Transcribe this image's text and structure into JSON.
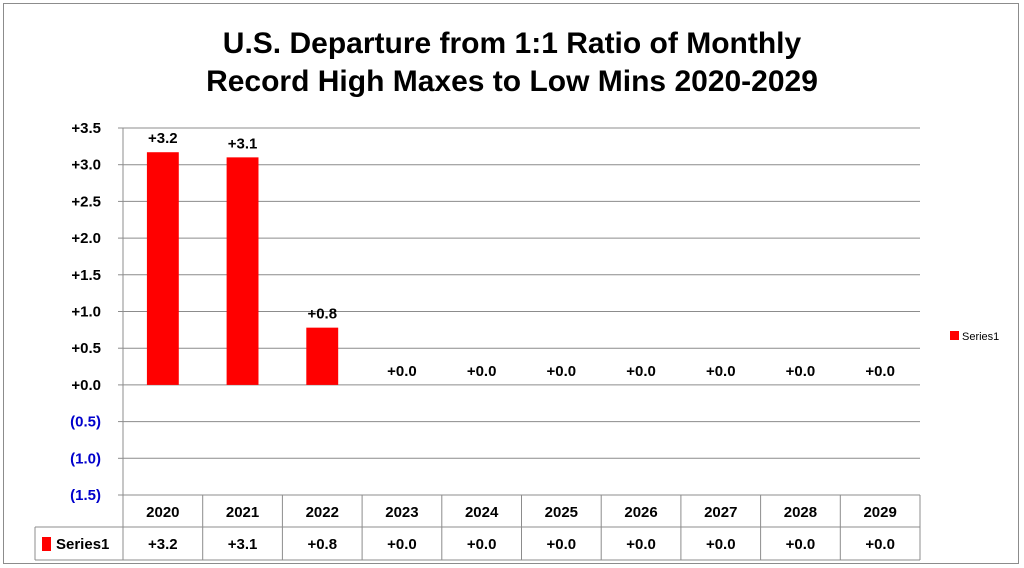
{
  "chart_data": {
    "type": "bar",
    "title_lines": [
      "U.S. Departure from 1:1 Ratio of Monthly",
      "Record High Maxes to Low Mins 2020-2029"
    ],
    "categories": [
      "2020",
      "2021",
      "2022",
      "2023",
      "2024",
      "2025",
      "2026",
      "2027",
      "2028",
      "2029"
    ],
    "series": [
      {
        "name": "Series1",
        "color": "#ff0000",
        "values": [
          3.17,
          3.1,
          0.78,
          0,
          0,
          0,
          0,
          0,
          0,
          0
        ],
        "data_labels": [
          "+3.2",
          "+3.1",
          "+0.8",
          "+0.0",
          "+0.0",
          "+0.0",
          "+0.0",
          "+0.0",
          "+0.0",
          "+0.0"
        ]
      }
    ],
    "ylim": [
      -1.5,
      3.5
    ],
    "yticks": [
      3.5,
      3.0,
      2.5,
      2.0,
      1.5,
      1.0,
      0.5,
      0.0,
      -0.5,
      -1.0,
      -1.5
    ],
    "ytick_labels": [
      "+3.5",
      "+3.0",
      "+2.5",
      "+2.0",
      "+1.5",
      "+1.0",
      "+0.5",
      "+0.0",
      "(0.5)",
      "(1.0)",
      "(1.5)"
    ],
    "negative_tick_color": "#0000cc",
    "grid": true,
    "legend_position": "right",
    "data_table": true
  }
}
